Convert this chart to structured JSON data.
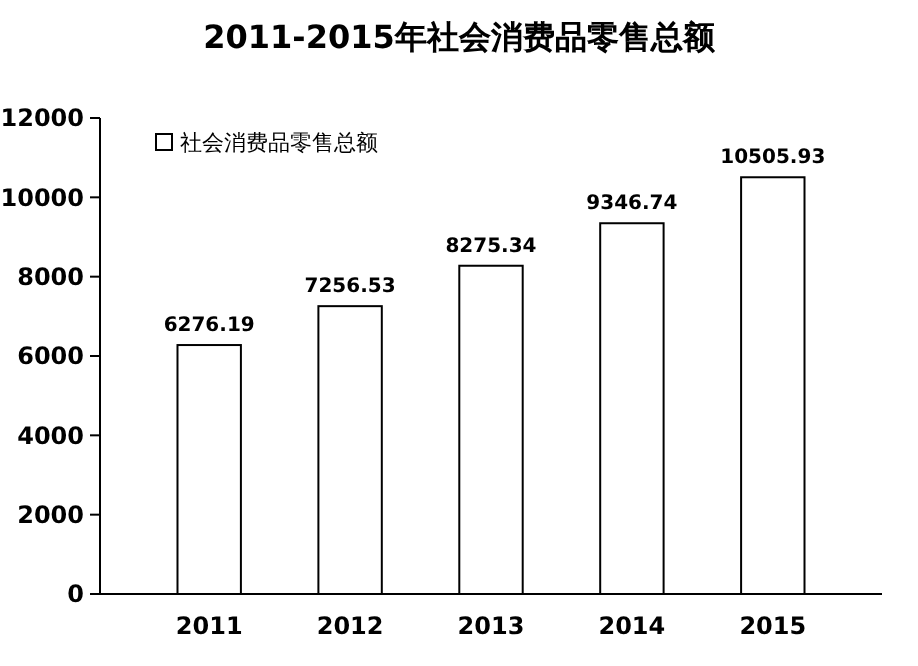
{
  "chart_data": {
    "type": "bar",
    "title": "2011-2015年社会消费品零售总额",
    "categories": [
      "2011",
      "2012",
      "2013",
      "2014",
      "2015"
    ],
    "series": [
      {
        "name": "社会消费品零售总额",
        "color": "#ffffff",
        "values": [
          6276.19,
          7256.53,
          8275.34,
          9346.74,
          10505.93
        ]
      }
    ],
    "ylim": [
      0,
      12000
    ],
    "yticks": [
      0,
      2000,
      4000,
      6000,
      8000,
      10000,
      12000
    ],
    "data_labels": true,
    "legend": "top left",
    "grid": false
  }
}
